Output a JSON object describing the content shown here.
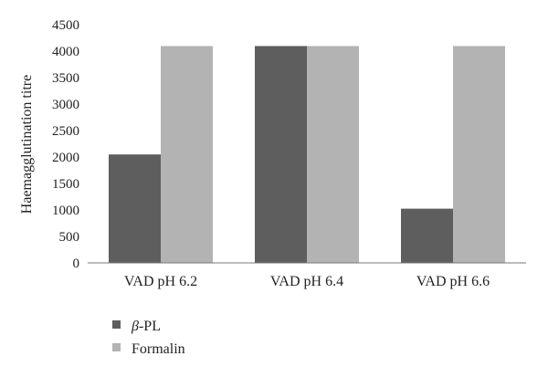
{
  "chart_data": {
    "type": "bar",
    "title": "",
    "xlabel": "",
    "ylabel": "Haemagglutination titre",
    "ylim": [
      0,
      4500
    ],
    "yticks": [
      0,
      500,
      1000,
      1500,
      2000,
      2500,
      3000,
      3500,
      4000,
      4500
    ],
    "grid": false,
    "legend_position": "bottom-left",
    "categories": [
      "VAD pH 6.2",
      "VAD pH 6.4",
      "VAD pH 6.6"
    ],
    "series": [
      {
        "name_symbol": "β",
        "name_rest": "-PL",
        "color": "#5e5e5e",
        "values": [
          2048,
          4096,
          1024
        ]
      },
      {
        "name": "Formalin",
        "color": "#b3b3b3",
        "values": [
          4096,
          4096,
          4096
        ]
      }
    ]
  }
}
